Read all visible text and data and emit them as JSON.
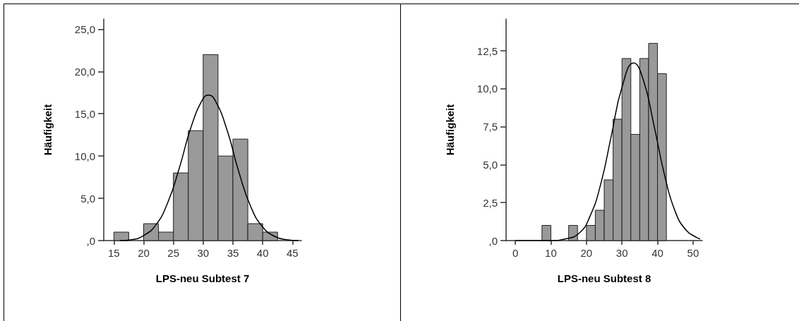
{
  "chart_data": [
    {
      "type": "histogram",
      "xlabel": "LPS-neu Subtest 7",
      "ylabel": "Häufigkeit",
      "bins": [
        15,
        17.5,
        20,
        22.5,
        25,
        27.5,
        30,
        32.5,
        35,
        37.5,
        40,
        42.5
      ],
      "values": [
        1,
        0,
        2,
        1,
        8,
        13,
        22,
        10,
        12,
        2,
        1
      ],
      "color": "#999999",
      "series": [
        {
          "type": "line",
          "color": "#000000",
          "x": [
            16,
            18,
            20,
            22,
            24,
            26,
            28,
            30,
            30.9,
            32,
            34,
            36,
            38,
            40,
            42,
            44,
            46
          ],
          "values": [
            0.0,
            0.1,
            0.6,
            1.8,
            4.4,
            8.6,
            13.5,
            16.8,
            17.2,
            16.6,
            13.1,
            8.1,
            4.0,
            1.6,
            0.5,
            0.1,
            0.0
          ]
        }
      ],
      "xlim": [
        13.3,
        46.5
      ],
      "ylim": [
        0,
        26.2
      ],
      "xticks": [
        15,
        20,
        25,
        30,
        35,
        40,
        45
      ],
      "yticks": [
        {
          "value": 0,
          "label": ",0"
        },
        {
          "value": 5,
          "label": "5,0"
        },
        {
          "value": 10,
          "label": "10,0"
        },
        {
          "value": 15,
          "label": "15,0"
        },
        {
          "value": 20,
          "label": "20,0"
        },
        {
          "value": 25,
          "label": "25,0"
        }
      ],
      "grid": false
    },
    {
      "type": "histogram",
      "xlabel": "LPS-neu Subtest 8",
      "ylabel": "Häufigkeit",
      "bins": [
        7.5,
        10,
        12.5,
        15,
        17.5,
        20,
        22.5,
        25,
        27.5,
        30,
        32.5,
        35,
        37.5,
        40,
        42.5
      ],
      "values": [
        1,
        0,
        0,
        1,
        0,
        1,
        2,
        4,
        8,
        12,
        7,
        12,
        13,
        11
      ],
      "color": "#999999",
      "series": [
        {
          "type": "line",
          "color": "#000000",
          "x": [
            0,
            5,
            10,
            14,
            18,
            21,
            24,
            27,
            30,
            33.3,
            36,
            39,
            42,
            45,
            48,
            51,
            52
          ],
          "values": [
            0.0,
            0.0,
            0.0,
            0.1,
            0.5,
            1.6,
            3.7,
            6.9,
            10.1,
            11.7,
            10.6,
            7.6,
            4.3,
            1.9,
            0.7,
            0.2,
            0.1
          ]
        }
      ],
      "xlim": [
        -2.6,
        52.6
      ],
      "ylim": [
        0,
        14.6
      ],
      "xticks": [
        0,
        10,
        20,
        30,
        40,
        50
      ],
      "yticks": [
        {
          "value": 0,
          "label": ",0"
        },
        {
          "value": 2.5,
          "label": "2,5"
        },
        {
          "value": 5,
          "label": "5,0"
        },
        {
          "value": 7.5,
          "label": "7,5"
        },
        {
          "value": 10,
          "label": "10,0"
        },
        {
          "value": 12.5,
          "label": "12,5"
        }
      ],
      "grid": false
    }
  ]
}
